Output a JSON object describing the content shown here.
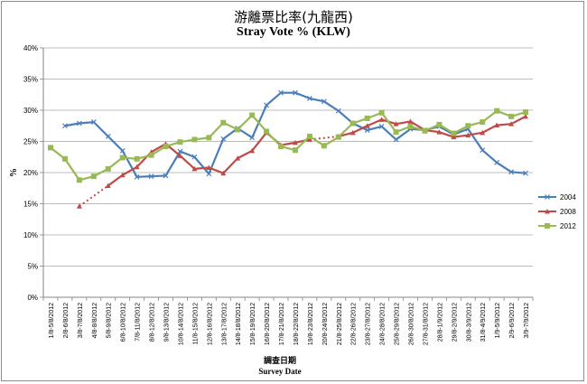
{
  "chart_data": {
    "type": "line",
    "title": "游離票比率(九龍西)",
    "subtitle": "Stray Vote % (KLW)",
    "xlabel": "調查日期",
    "xlabel_en": "Survey Date",
    "ylabel": "%",
    "ylim": [
      0,
      40
    ],
    "y_ticks": [
      "0%",
      "5%",
      "10%",
      "15%",
      "20%",
      "25%",
      "30%",
      "35%",
      "40%"
    ],
    "grid": true,
    "legend_position": "right",
    "categories": [
      "1/8-5/8/2012",
      "2/8-6/8/2012",
      "3/8-7/8/2012",
      "4/8-8/8/2012",
      "5/8-9/8/2012",
      "6/8-10/8/2012",
      "7/8-11/8/2012",
      "8/8-12/8/2012",
      "9/8-13/8/2012",
      "10/8-14/8/2012",
      "11/8-15/8/2012",
      "12/8-16/8/2012",
      "13/8-17/8/2012",
      "14/8-18/8/2012",
      "15/8-19/8/2012",
      "16/8-20/8/2012",
      "17/8-21/8/2012",
      "18/8-22/8/2012",
      "19/8-23/8/2012",
      "20/8-24/8/2012",
      "21/8-25/8/2012",
      "22/8-26/8/2012",
      "23/8-27/8/2012",
      "24/8-28/8/2012",
      "25/8-29/8/2012",
      "26/8-30/8/2012",
      "27/8-31/8/2012",
      "28/8-1/9/2012",
      "29/8-2/9/2012",
      "30/8-3/9/2012",
      "31/8-4/9/2012",
      "1/9-5/9/2012",
      "2/9-6/9/2012",
      "3/9-7/9/2012"
    ],
    "series": [
      {
        "name": "2004",
        "color": "#4a7ebb",
        "marker": "x",
        "values": [
          null,
          27.5,
          27.9,
          28.1,
          25.8,
          23.5,
          19.3,
          19.4,
          19.5,
          23.4,
          22.5,
          19.8,
          25.4,
          27.1,
          25.6,
          30.8,
          32.8,
          32.8,
          31.9,
          31.4,
          29.9,
          27.9,
          26.8,
          27.4,
          25.3,
          27.0,
          26.8,
          27.4,
          26.1,
          27.0,
          23.6,
          21.6,
          20.1,
          19.9
        ]
      },
      {
        "name": "2008",
        "color": "#be4b48",
        "marker": "triangle",
        "values": [
          null,
          null,
          14.6,
          null,
          17.9,
          19.6,
          20.9,
          23.3,
          24.6,
          22.7,
          20.6,
          20.8,
          19.9,
          22.3,
          23.5,
          26.4,
          24.4,
          24.8,
          25.3,
          null,
          25.8,
          26.4,
          27.5,
          28.5,
          27.8,
          28.2,
          26.8,
          26.5,
          25.7,
          26.0,
          26.4,
          27.6,
          27.8,
          29.0
        ]
      },
      {
        "name": "2012",
        "color": "#98b954",
        "marker": "square",
        "values": [
          24.0,
          22.2,
          18.8,
          19.4,
          20.6,
          22.4,
          22.2,
          22.8,
          24.2,
          24.9,
          25.3,
          25.6,
          28.0,
          26.9,
          29.2,
          26.6,
          24.2,
          23.6,
          25.8,
          24.3,
          25.7,
          27.9,
          28.7,
          29.6,
          26.5,
          27.4,
          26.7,
          27.7,
          26.3,
          27.5,
          28.1,
          29.9,
          29.0,
          29.7
        ]
      }
    ]
  }
}
